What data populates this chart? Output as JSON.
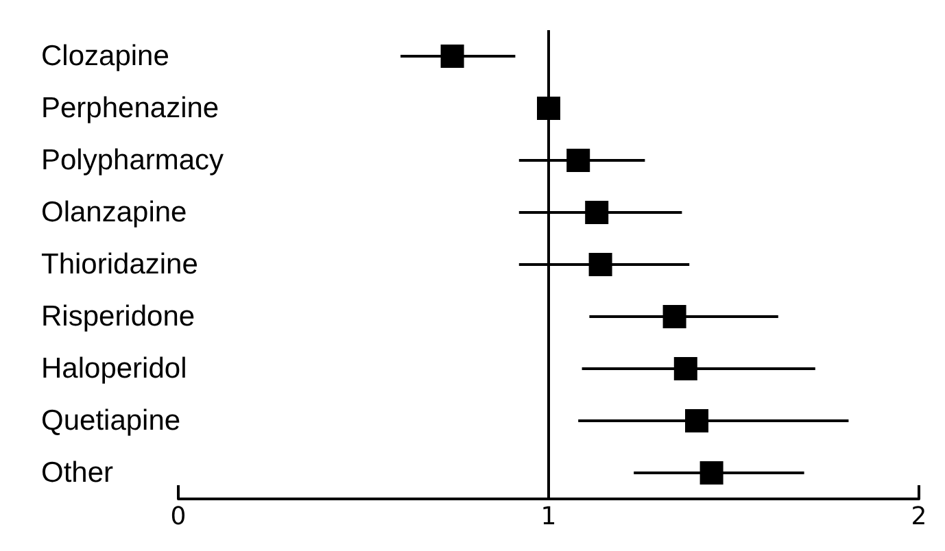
{
  "chart_data": {
    "type": "scatter",
    "orientation": "horizontal",
    "marker": "square",
    "grid": false,
    "categories": [
      "Clozapine",
      "Perphenazine",
      "Polypharmacy",
      "Olanzapine",
      "Thioridazine",
      "Risperidone",
      "Haloperidol",
      "Quetiapine",
      "Other"
    ],
    "values": [
      0.74,
      1.0,
      1.08,
      1.13,
      1.14,
      1.34,
      1.37,
      1.4,
      1.44
    ],
    "errors": [
      [
        0.6,
        0.91
      ],
      null,
      [
        0.92,
        1.26
      ],
      [
        0.92,
        1.36
      ],
      [
        0.92,
        1.38
      ],
      [
        1.11,
        1.62
      ],
      [
        1.09,
        1.72
      ],
      [
        1.08,
        1.81
      ],
      [
        1.23,
        1.69
      ]
    ],
    "color": "#000000",
    "xlim": [
      0,
      2
    ],
    "xticks": [
      0,
      1,
      2
    ],
    "ref_lines": [
      {
        "axis": "x",
        "value": 1,
        "color": "#000000"
      }
    ]
  }
}
